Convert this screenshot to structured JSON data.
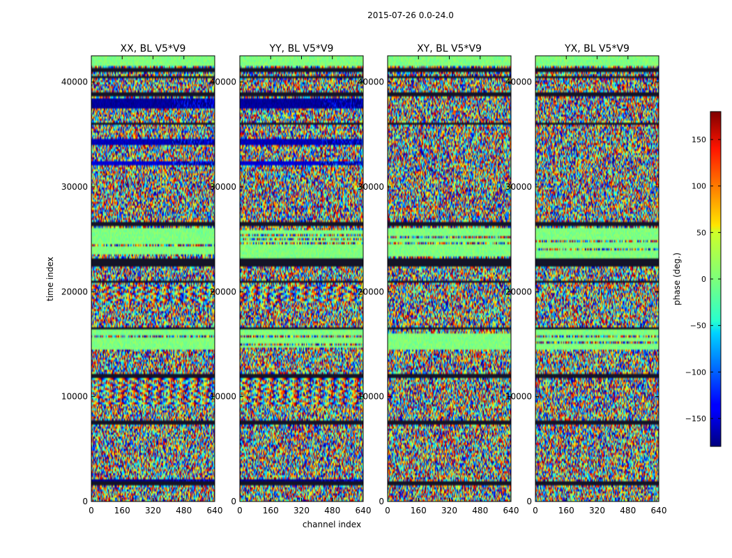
{
  "figure": {
    "suptitle": "2015-07-26 0.0-24.0",
    "xlabel": "channel index",
    "ylabel": "time index"
  },
  "chart_data": {
    "type": "heatmap",
    "title": "2015-07-26 0.0-24.0",
    "xlabel": "channel index",
    "ylabel": "time index",
    "xlim": [
      0,
      640
    ],
    "ylim": [
      0,
      42500
    ],
    "xticks": [
      0,
      160,
      320,
      480,
      640
    ],
    "yticks": [
      0,
      10000,
      20000,
      30000,
      40000
    ],
    "panels": [
      {
        "title": "XX, BL V5*V9",
        "polarization": "XX"
      },
      {
        "title": "YY, BL V5*V9",
        "polarization": "YY"
      },
      {
        "title": "XY, BL V5*V9",
        "polarization": "XY"
      },
      {
        "title": "YX, BL V5*V9",
        "polarization": "YX"
      }
    ],
    "colorbar": {
      "label": "phase (deg.)",
      "colormap": "jet",
      "vmin": -180,
      "vmax": 180,
      "ticks": [
        -150,
        -100,
        -50,
        0,
        50,
        100,
        150
      ]
    },
    "strong_phase_bands_parallel_hands": [
      {
        "time_start": 37500,
        "time_end": 38500,
        "phase_deg": -170
      },
      {
        "time_start": 34000,
        "time_end": 34500,
        "phase_deg": -160
      },
      {
        "time_start": 32000,
        "time_end": 32500,
        "phase_deg": -150
      },
      {
        "time_start": 1700,
        "time_end": 2100,
        "phase_deg": -175
      }
    ],
    "flagged_time_rows": [
      1700,
      7500,
      12000,
      16500,
      21000,
      22600,
      23000,
      26500,
      36000,
      38800,
      40500,
      41200
    ]
  }
}
